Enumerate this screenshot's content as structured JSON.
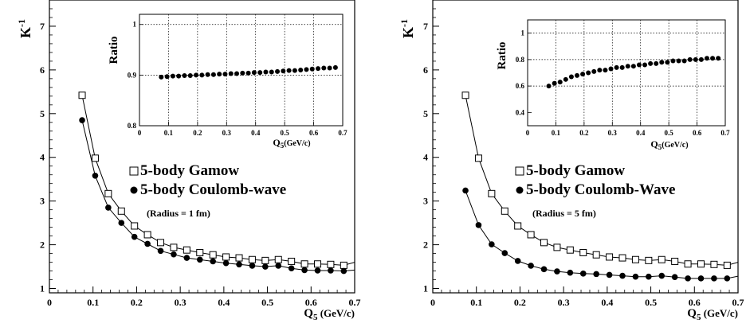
{
  "chart_data": [
    {
      "type": "line",
      "ylabel": "K",
      "ylabel_sup": "-1",
      "xlabel": "Q",
      "xlabel_sub": "5",
      "xlabel_unit": "(GeV/c)",
      "xlim": [
        0,
        0.7
      ],
      "ylim": [
        0.9,
        7.6
      ],
      "xticks": [
        "0",
        "0.1",
        "0.2",
        "0.3",
        "0.4",
        "0.5",
        "0.6",
        "0.7"
      ],
      "yticks": [
        "1",
        "2",
        "3",
        "4",
        "5",
        "6",
        "7"
      ],
      "legend": [
        "5-body Gamow",
        "5-body Coulomb-wave"
      ],
      "annotation": "(Radius = 1 fm)",
      "x": [
        0.075,
        0.105,
        0.135,
        0.165,
        0.195,
        0.225,
        0.255,
        0.285,
        0.315,
        0.345,
        0.375,
        0.405,
        0.435,
        0.465,
        0.495,
        0.525,
        0.555,
        0.585,
        0.615,
        0.645,
        0.675,
        0.7
      ],
      "series": [
        {
          "name": "5-body Gamow",
          "marker": "open-square",
          "values": [
            5.42,
            3.98,
            3.17,
            2.77,
            2.43,
            2.23,
            2.05,
            1.94,
            1.88,
            1.82,
            1.77,
            1.72,
            1.7,
            1.66,
            1.64,
            1.66,
            1.62,
            1.56,
            1.56,
            1.55,
            1.53,
            1.6
          ]
        },
        {
          "name": "5-body Coulomb-wave",
          "marker": "filled-circle",
          "values": [
            4.85,
            3.58,
            2.85,
            2.5,
            2.18,
            2.02,
            1.86,
            1.78,
            1.7,
            1.66,
            1.62,
            1.58,
            1.55,
            1.52,
            1.5,
            1.52,
            1.46,
            1.42,
            1.41,
            1.41,
            1.4,
            1.42
          ]
        }
      ],
      "inset": {
        "type": "scatter",
        "ylabel": "Ratio",
        "xlabel": "Q",
        "xlabel_sub": "5",
        "xlabel_unit": "(GeV/c)",
        "xlim": [
          0,
          0.7
        ],
        "ylim": [
          0.8,
          1.02
        ],
        "xticks": [
          "0",
          "0.1",
          "0.2",
          "0.3",
          "0.4",
          "0.5",
          "0.6",
          "0.7"
        ],
        "yticks": [
          "0.8",
          "0.9",
          "1"
        ],
        "ytick_values": [
          0.8,
          0.9,
          1.0
        ],
        "gridlines_y": [
          0.9,
          1.0
        ],
        "x": [
          0.075,
          0.095,
          0.115,
          0.135,
          0.155,
          0.175,
          0.195,
          0.215,
          0.235,
          0.255,
          0.275,
          0.295,
          0.315,
          0.335,
          0.355,
          0.375,
          0.395,
          0.415,
          0.435,
          0.455,
          0.475,
          0.495,
          0.515,
          0.535,
          0.555,
          0.575,
          0.595,
          0.615,
          0.635,
          0.655,
          0.675
        ],
        "values": [
          0.896,
          0.897,
          0.898,
          0.898,
          0.899,
          0.899,
          0.9,
          0.9,
          0.901,
          0.901,
          0.902,
          0.902,
          0.903,
          0.903,
          0.904,
          0.904,
          0.905,
          0.905,
          0.906,
          0.906,
          0.907,
          0.908,
          0.909,
          0.909,
          0.91,
          0.911,
          0.912,
          0.913,
          0.914,
          0.914,
          0.915
        ]
      }
    },
    {
      "type": "line",
      "ylabel": "K",
      "ylabel_sup": "-1",
      "xlabel": "Q",
      "xlabel_sub": "5",
      "xlabel_unit": "(GeV/c)",
      "xlim": [
        0,
        0.7
      ],
      "ylim": [
        0.9,
        7.6
      ],
      "xticks": [
        "0",
        "0.1",
        "0.2",
        "0.3",
        "0.4",
        "0.5",
        "0.6",
        "0.7"
      ],
      "yticks": [
        "1",
        "2",
        "3",
        "4",
        "5",
        "6",
        "7"
      ],
      "legend": [
        "5-body Gamow",
        "5-body Coulomb-Wave"
      ],
      "annotation": "(Radius = 5 fm)",
      "x": [
        0.075,
        0.105,
        0.135,
        0.165,
        0.195,
        0.225,
        0.255,
        0.285,
        0.315,
        0.345,
        0.375,
        0.405,
        0.435,
        0.465,
        0.495,
        0.525,
        0.555,
        0.585,
        0.615,
        0.645,
        0.675,
        0.7
      ],
      "series": [
        {
          "name": "5-body Gamow",
          "marker": "open-square",
          "values": [
            5.42,
            3.98,
            3.17,
            2.77,
            2.43,
            2.23,
            2.05,
            1.94,
            1.88,
            1.82,
            1.77,
            1.72,
            1.7,
            1.66,
            1.64,
            1.66,
            1.62,
            1.56,
            1.56,
            1.55,
            1.53,
            1.6
          ]
        },
        {
          "name": "5-body Coulomb-Wave",
          "marker": "filled-circle",
          "values": [
            3.24,
            2.45,
            2.01,
            1.81,
            1.63,
            1.52,
            1.44,
            1.39,
            1.36,
            1.34,
            1.33,
            1.31,
            1.29,
            1.27,
            1.27,
            1.29,
            1.26,
            1.23,
            1.23,
            1.23,
            1.23,
            1.28
          ]
        }
      ],
      "inset": {
        "type": "scatter",
        "ylabel": "Ratio",
        "xlabel": "Q",
        "xlabel_sub": "5",
        "xlabel_unit": "(GeV/c)",
        "xlim": [
          0,
          0.7
        ],
        "ylim": [
          0.3,
          1.1
        ],
        "xticks": [
          "0",
          "0.1",
          "0.2",
          "0.3",
          "0.4",
          "0.5",
          "0.6",
          "0.7"
        ],
        "yticks": [
          "0.4",
          "0.6",
          "0.8",
          "1"
        ],
        "ytick_values": [
          0.4,
          0.6,
          0.8,
          1.0
        ],
        "gridlines_y": [
          0.6,
          0.8,
          1.0
        ],
        "x": [
          0.075,
          0.095,
          0.115,
          0.135,
          0.155,
          0.175,
          0.195,
          0.215,
          0.235,
          0.255,
          0.275,
          0.295,
          0.315,
          0.335,
          0.355,
          0.375,
          0.395,
          0.415,
          0.435,
          0.455,
          0.475,
          0.495,
          0.515,
          0.535,
          0.555,
          0.575,
          0.595,
          0.615,
          0.635,
          0.655,
          0.675
        ],
        "values": [
          0.6,
          0.62,
          0.63,
          0.65,
          0.67,
          0.68,
          0.69,
          0.7,
          0.71,
          0.72,
          0.72,
          0.73,
          0.74,
          0.74,
          0.75,
          0.75,
          0.76,
          0.76,
          0.77,
          0.77,
          0.78,
          0.78,
          0.79,
          0.79,
          0.79,
          0.8,
          0.8,
          0.8,
          0.81,
          0.81,
          0.81
        ]
      }
    }
  ]
}
